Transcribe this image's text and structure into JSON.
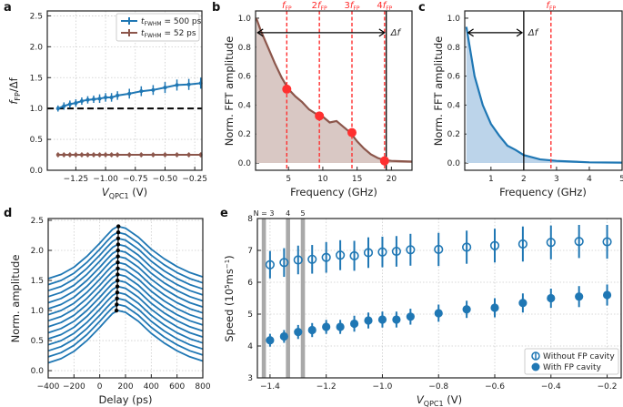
{
  "colors": {
    "blue": "#1f77b4",
    "brown": "#8c564b",
    "red": "#ff3030",
    "gray": "#a9a9a9",
    "fill_brown": "#d9c8c4",
    "fill_blue": "#bcd4ea"
  },
  "chart_data": [
    {
      "panel": "a",
      "type": "line",
      "xlim": [
        -1.49,
        -0.19
      ],
      "ylim": [
        0,
        2.58
      ],
      "grid": true,
      "xticks": [
        -1.25,
        -1.0,
        -0.75,
        -0.5,
        -0.25
      ],
      "xtick_labels": [
        "−1.25",
        "−1.00",
        "−0.75",
        "−0.50",
        "−0.25"
      ],
      "yticks": [
        0,
        0.5,
        1,
        1.5,
        2,
        2.5
      ],
      "ytick_labels": [
        "0.0",
        "0.5",
        "1.0",
        "1.5",
        "2.0",
        "2.5"
      ],
      "xlabel": {
        "main": "V",
        "sub": "QPC1",
        "unit": " (V)"
      },
      "ylabel": {
        "main": "f",
        "sub": "FP",
        "rest": "/Δf"
      },
      "x": [
        -1.4,
        -1.35,
        -1.3,
        -1.25,
        -1.2,
        -1.15,
        -1.1,
        -1.05,
        -1.0,
        -0.95,
        -0.9,
        -0.8,
        -0.7,
        -0.6,
        -0.5,
        -0.4,
        -0.3,
        -0.2
      ],
      "series": [
        {
          "name": "t_FWHM = 500 ps",
          "legend": {
            "main": "t",
            "sub": "FWHM",
            "rest": " = 500 ps"
          },
          "color": "blue",
          "values": [
            1.0,
            1.04,
            1.07,
            1.09,
            1.12,
            1.14,
            1.15,
            1.16,
            1.18,
            1.18,
            1.21,
            1.24,
            1.28,
            1.3,
            1.34,
            1.38,
            1.39,
            1.41
          ],
          "err": [
            0.02,
            0.03,
            0.03,
            0.03,
            0.03,
            0.03,
            0.03,
            0.04,
            0.04,
            0.04,
            0.04,
            0.05,
            0.05,
            0.05,
            0.06,
            0.06,
            0.06,
            0.06
          ]
        },
        {
          "name": "t_FWHM = 52 ps",
          "legend": {
            "main": "t",
            "sub": "FWHM",
            "rest": " = 52 ps"
          },
          "color": "brown",
          "values": [
            0.25,
            0.25,
            0.25,
            0.25,
            0.25,
            0.25,
            0.25,
            0.25,
            0.25,
            0.25,
            0.25,
            0.25,
            0.25,
            0.25,
            0.25,
            0.25,
            0.25,
            0.25
          ],
          "err": [
            0.01,
            0.01,
            0.01,
            0.01,
            0.01,
            0.01,
            0.01,
            0.01,
            0.01,
            0.01,
            0.01,
            0.01,
            0.01,
            0.01,
            0.01,
            0.01,
            0.01,
            0.01
          ]
        }
      ],
      "hline": 1.0,
      "legend_placement": "top-right"
    },
    {
      "panel": "b",
      "type": "area",
      "xlim": [
        0.2,
        23
      ],
      "ylim": [
        -0.05,
        1.05
      ],
      "xticks": [
        5,
        10,
        15,
        20
      ],
      "xtick_labels": [
        "5",
        "10",
        "15",
        "20"
      ],
      "yticks": [
        0,
        0.2,
        0.4,
        0.6,
        0.8,
        1.0
      ],
      "ytick_labels": [
        "0.0",
        "0.2",
        "0.4",
        "0.6",
        "0.8",
        "1.0"
      ],
      "xlabel": "Frequency (GHz)",
      "ylabel": "Norm. FFT amplitude",
      "x": [
        0.3,
        1,
        2,
        3,
        4,
        5,
        6,
        7,
        8,
        9,
        10,
        11,
        12,
        13,
        14,
        15,
        16,
        17,
        18,
        19,
        20,
        21,
        23
      ],
      "values": [
        1.0,
        0.91,
        0.8,
        0.69,
        0.59,
        0.51,
        0.46,
        0.42,
        0.37,
        0.34,
        0.32,
        0.28,
        0.29,
        0.25,
        0.21,
        0.15,
        0.1,
        0.06,
        0.035,
        0.02,
        0.015,
        0.013,
        0.01
      ],
      "markers": {
        "x": [
          4.75,
          9.5,
          14.25,
          19.0
        ],
        "y": [
          0.51,
          0.325,
          0.21,
          0.015
        ]
      },
      "vlines": [
        4.75,
        9.5,
        14.25,
        19.0
      ],
      "vline_labels": [
        {
          "pre": "",
          "main": "f",
          "sub": "FP"
        },
        {
          "pre": "2",
          "main": "f",
          "sub": "FP"
        },
        {
          "pre": "3",
          "main": "f",
          "sub": "FP"
        },
        {
          "pre": "4",
          "main": "f",
          "sub": "FP"
        }
      ],
      "delta_f": 19.25,
      "delta_label": "Δf",
      "arrow": {
        "from": 0.5,
        "to": 19.0,
        "y": 0.9
      }
    },
    {
      "panel": "c",
      "type": "area",
      "xlim": [
        0.2,
        5
      ],
      "ylim": [
        -0.05,
        1.05
      ],
      "xticks": [
        1,
        2,
        3,
        4,
        5
      ],
      "xtick_labels": [
        "1",
        "2",
        "3",
        "4",
        "5"
      ],
      "yticks": [
        0,
        0.2,
        0.4,
        0.6,
        0.8,
        1.0
      ],
      "ytick_labels": [
        "0.0",
        "0.2",
        "0.4",
        "0.6",
        "0.8",
        "1.0"
      ],
      "xlabel": "Frequency (GHz)",
      "ylabel": "Norm. FFT amplitude",
      "x": [
        0.25,
        0.5,
        0.75,
        1,
        1.25,
        1.5,
        1.75,
        2,
        2.25,
        2.5,
        3,
        3.5,
        4,
        5
      ],
      "values": [
        0.94,
        0.6,
        0.4,
        0.27,
        0.19,
        0.12,
        0.09,
        0.055,
        0.04,
        0.025,
        0.015,
        0.01,
        0.005,
        0.003
      ],
      "vline": 2.83,
      "vline_label": {
        "main": "f",
        "sub": "FP"
      },
      "delta_f": 2.0,
      "delta_label": "Δf",
      "arrow": {
        "from": 0.3,
        "to": 1.95,
        "y": 0.9
      }
    },
    {
      "panel": "d",
      "type": "line",
      "xlim": [
        -400,
        800
      ],
      "ylim": [
        -0.12,
        2.53
      ],
      "grid": true,
      "xticks": [
        -400,
        -200,
        0,
        200,
        400,
        600,
        800
      ],
      "xtick_labels": [
        "−400",
        "−200",
        "0",
        "200",
        "400",
        "600",
        "800"
      ],
      "yticks": [
        0,
        0.5,
        1,
        1.5,
        2,
        2.5
      ],
      "ytick_labels": [
        "0.0",
        "0.5",
        "1.0",
        "1.5",
        "2.0",
        "2.5"
      ],
      "xlabel": "Delay (ps)",
      "ylabel": "Norm. amplitude",
      "profile_x": [
        -400,
        -300,
        -200,
        -100,
        0,
        50,
        100,
        140,
        200,
        300,
        400,
        500,
        600,
        700,
        800
      ],
      "profile_y": [
        0.13,
        0.2,
        0.32,
        0.5,
        0.72,
        0.84,
        0.95,
        1.0,
        0.97,
        0.82,
        0.62,
        0.46,
        0.33,
        0.23,
        0.16
      ],
      "curve_count": 15,
      "offset_step": 0.1,
      "peaks": {
        "x": [
          130,
          132,
          134,
          136,
          137,
          138,
          139,
          140,
          140,
          141,
          142,
          143,
          143,
          144,
          145
        ],
        "y": [
          1.0,
          1.1,
          1.2,
          1.3,
          1.4,
          1.5,
          1.6,
          1.7,
          1.8,
          1.9,
          2.0,
          2.1,
          2.2,
          2.3,
          2.4
        ]
      }
    },
    {
      "panel": "e",
      "type": "scatter",
      "xlim": [
        -1.445,
        -0.15
      ],
      "ylim": [
        3,
        8
      ],
      "grid": true,
      "xticks": [
        -1.4,
        -1.2,
        -1.0,
        -0.8,
        -0.6,
        -0.4,
        -0.2
      ],
      "xtick_labels": [
        "−1.4",
        "−1.2",
        "−1.0",
        "−0.8",
        "−0.6",
        "−0.4",
        "−0.2"
      ],
      "yticks": [
        3,
        4,
        5,
        6,
        7,
        8
      ],
      "ytick_labels": [
        "3",
        "4",
        "5",
        "6",
        "7",
        "8"
      ],
      "xlabel": {
        "main": "V",
        "sub": "QPC1",
        "unit": " (V)"
      },
      "ylabel": {
        "pre": "Speed (10",
        "sup": "5",
        "mid": "ms",
        "sup2": "−1",
        "post": ")"
      },
      "bands": [
        -1.422,
        -1.336,
        -1.283
      ],
      "band_labels": [
        "N = 3",
        "4",
        "5"
      ],
      "x": [
        -1.4,
        -1.35,
        -1.3,
        -1.25,
        -1.2,
        -1.15,
        -1.1,
        -1.05,
        -1.0,
        -0.95,
        -0.9,
        -0.8,
        -0.7,
        -0.6,
        -0.5,
        -0.4,
        -0.3,
        -0.2
      ],
      "series": [
        {
          "name": "Without FP cavity",
          "marker": "open",
          "values": [
            6.55,
            6.62,
            6.7,
            6.72,
            6.78,
            6.85,
            6.83,
            6.93,
            6.95,
            6.97,
            7.02,
            7.03,
            7.1,
            7.15,
            7.2,
            7.25,
            7.28,
            7.27
          ],
          "err": [
            0.43,
            0.45,
            0.45,
            0.45,
            0.48,
            0.47,
            0.47,
            0.48,
            0.48,
            0.48,
            0.5,
            0.52,
            0.52,
            0.53,
            0.55,
            0.53,
            0.52,
            0.53
          ]
        },
        {
          "name": "With FP cavity",
          "marker": "filled",
          "values": [
            4.18,
            4.3,
            4.44,
            4.5,
            4.6,
            4.6,
            4.7,
            4.8,
            4.83,
            4.83,
            4.92,
            5.03,
            5.15,
            5.2,
            5.35,
            5.5,
            5.55,
            5.6
          ],
          "err": [
            0.2,
            0.2,
            0.22,
            0.22,
            0.22,
            0.22,
            0.25,
            0.25,
            0.25,
            0.25,
            0.25,
            0.27,
            0.27,
            0.3,
            0.3,
            0.3,
            0.33,
            0.33
          ]
        }
      ],
      "legend_placement": "bottom-right"
    }
  ]
}
